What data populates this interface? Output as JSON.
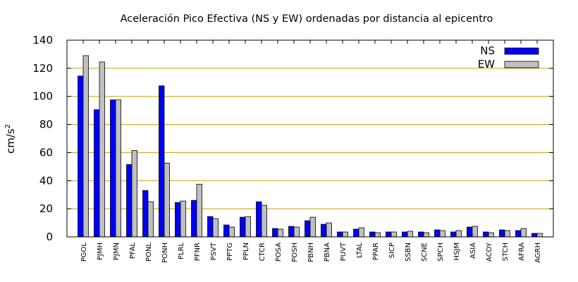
{
  "chart_data": {
    "type": "bar",
    "title": "Aceleración Pico Efectiva (NS y EW) ordenadas por distancia al epicentro",
    "xlabel": "",
    "ylabel": "cm/s",
    "ylabel_sup": "2",
    "ylim": [
      0,
      140
    ],
    "yticks": [
      0,
      20,
      40,
      60,
      80,
      100,
      120,
      140
    ],
    "grid": "horizontal",
    "legend_position": "top-right",
    "categories": [
      "PGOL",
      "PJMH",
      "PJMN",
      "PFAL",
      "PONL",
      "PONH",
      "PLRL",
      "PFNR",
      "PSVT",
      "PPTG",
      "PPLN",
      "CTCR",
      "POSA",
      "POSH",
      "PBNH",
      "PBNA",
      "PUVT",
      "LTAL",
      "PPAR",
      "SICP",
      "SSBN",
      "SCNE",
      "SPCH",
      "HSJM",
      "ASIA",
      "ACOY",
      "STCH",
      "AFRA",
      "AGRH"
    ],
    "series": [
      {
        "name": "NS",
        "color": "#0000ff",
        "values": [
          114.5,
          90.5,
          97.5,
          51.5,
          33.0,
          107.5,
          24.5,
          26.0,
          14.5,
          8.5,
          14.0,
          25.0,
          6.0,
          7.5,
          11.5,
          9.0,
          3.5,
          5.5,
          3.5,
          3.5,
          3.5,
          3.5,
          5.0,
          3.5,
          7.0,
          3.5,
          5.0,
          4.5,
          2.5
        ]
      },
      {
        "name": "EW",
        "color": "#c0c0c0",
        "values": [
          129.0,
          124.5,
          97.5,
          61.5,
          25.0,
          52.5,
          25.5,
          37.5,
          13.0,
          7.0,
          14.5,
          22.5,
          5.5,
          7.0,
          14.0,
          10.0,
          3.5,
          6.5,
          3.0,
          3.5,
          4.0,
          3.0,
          4.5,
          4.5,
          7.5,
          3.0,
          4.5,
          6.0,
          2.5
        ]
      }
    ],
    "colors": {
      "grid": "#c8a000",
      "axis": "#000000",
      "bar_outline": "#000000"
    }
  }
}
